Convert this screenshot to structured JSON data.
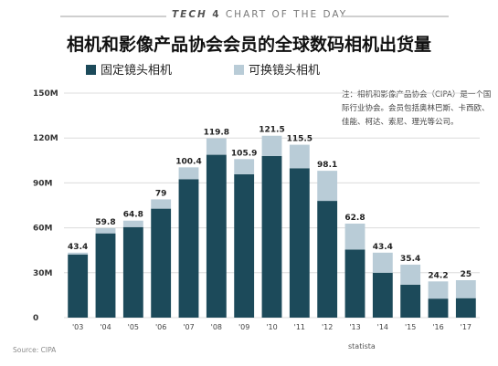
{
  "banner": {
    "brand": "TECH",
    "mark": "4",
    "text": "CHART OF THE DAY"
  },
  "title": "相机和影像产品协会会员的全球数码相机出货量",
  "legend": [
    {
      "label": "固定镜头相机",
      "color": "#1c4a5a"
    },
    {
      "label": "可换镜头相机",
      "color": "#b9ccd7"
    }
  ],
  "note": "注：相机和影像产品协会（CIPA）是一个国际行业协会。会员包括奥林巴斯、卡西欧、佳能、柯达、索尼、理光等公司。",
  "footer": {
    "source": "Source: CIPA",
    "credit": "statista"
  },
  "chart_data": {
    "type": "bar",
    "stacked": true,
    "title": "相机和影像产品协会会员的全球数码相机出货量",
    "categories": [
      "'03",
      "'04",
      "'05",
      "'06",
      "'07",
      "'08",
      "'09",
      "'10",
      "'11",
      "'12",
      "'13",
      "'14",
      "'15",
      "'16",
      "'17"
    ],
    "series": [
      {
        "name": "固定镜头相机",
        "color": "#1c4a5a",
        "values": [
          42.2,
          56.3,
          60.5,
          72.8,
          92.5,
          108.8,
          95.8,
          108.0,
          99.8,
          78.0,
          45.5,
          30.0,
          22.0,
          12.7,
          13.0
        ]
      },
      {
        "name": "可换镜头相机",
        "color": "#b9ccd7",
        "values": [
          1.2,
          3.5,
          4.3,
          6.2,
          7.9,
          11.0,
          10.1,
          13.5,
          15.7,
          20.1,
          17.3,
          13.4,
          13.4,
          11.5,
          12.0
        ]
      }
    ],
    "totals": [
      "43.4",
      "59.8",
      "64.8",
      "79",
      "100.4",
      "119.8",
      "105.9",
      "121.5",
      "115.5",
      "98.1",
      "62.8",
      "43.4",
      "35.4",
      "24.2",
      "25"
    ],
    "yticks": [
      "0",
      "30M",
      "60M",
      "90M",
      "120M",
      "150M"
    ],
    "ytick_values": [
      0,
      30,
      60,
      90,
      120,
      150
    ],
    "ylim": [
      0,
      150
    ],
    "grid": true
  }
}
